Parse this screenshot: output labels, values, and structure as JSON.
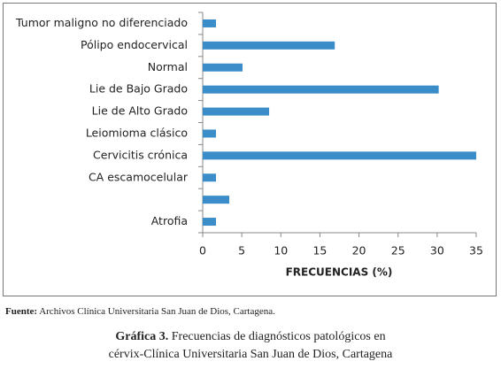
{
  "chart_data": {
    "type": "hbar",
    "categories": [
      "Tumor maligno no diferenciado",
      "Pólipo endocervical",
      "Normal",
      "Lie de Bajo Grado",
      "Lie de Alto Grado",
      "Leiomioma clásico",
      "Cervicitis crónica",
      "CA escamocelular",
      null,
      "Atrofia"
    ],
    "values": [
      1.7,
      16.9,
      5.1,
      30.2,
      8.5,
      1.7,
      35,
      1.7,
      3.4,
      1.7
    ],
    "color": "#3a8dc8",
    "xlabel": "FRECUENCIAS (%)",
    "xlim": [
      0,
      35
    ],
    "xticks": [
      0,
      5,
      10,
      15,
      20,
      25,
      30,
      35
    ]
  },
  "source": {
    "label": "Fuente:",
    "text": "Archivos Clínica Universitaria San Juan de Dios, Cartagena."
  },
  "caption": {
    "label": "Gráfica 3.",
    "line1": "Frecuencias de diagnósticos patológicos en",
    "line2": "cérvix-Clínica Universitaria San Juan de Dios, Cartagena"
  }
}
